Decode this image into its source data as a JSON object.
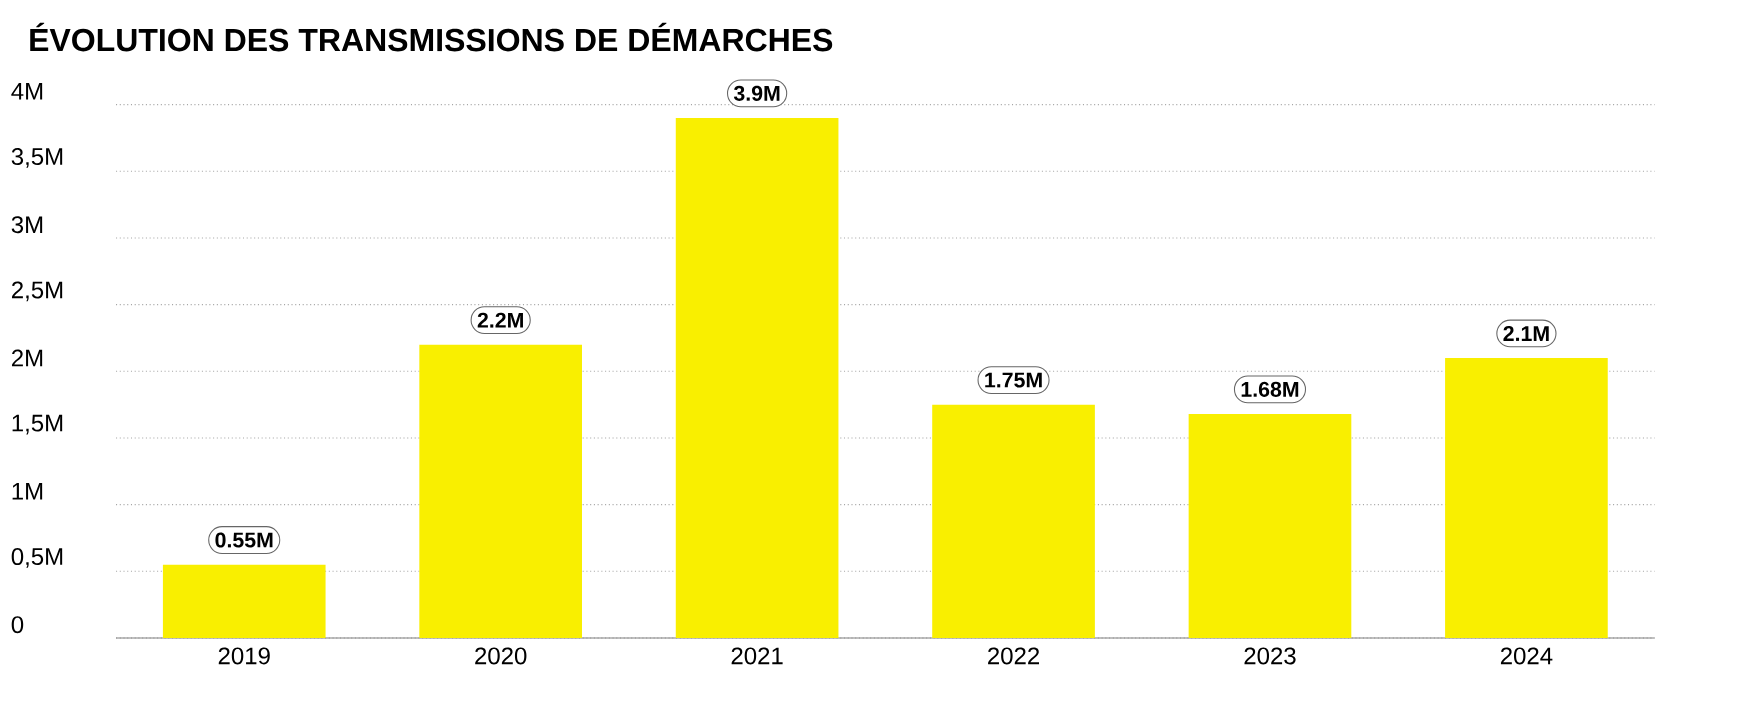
{
  "chart_data": {
    "type": "bar",
    "title": "ÉVOLUTION DES TRANSMISSIONS DE DÉMARCHES",
    "categories": [
      "2019",
      "2020",
      "2021",
      "2022",
      "2023",
      "2024"
    ],
    "values": [
      0.55,
      2.2,
      3.9,
      1.75,
      1.68,
      2.1
    ],
    "value_labels": [
      "0.55M",
      "2.2M",
      "3.9M",
      "1.75M",
      "1.68M",
      "2.1M"
    ],
    "color": "#f9ef00",
    "ylim": [
      0,
      4
    ],
    "yticks": [
      0,
      {
        "value": 0.5,
        "label": "0,5M"
      },
      {
        "value": 1,
        "label": "1M"
      },
      {
        "value": 1.5,
        "label": "1,5M"
      },
      {
        "value": 2,
        "label": "2M"
      },
      {
        "value": 2.5,
        "label": "2,5M"
      },
      {
        "value": 3,
        "label": "3M"
      },
      {
        "value": 3.5,
        "label": "3,5M"
      },
      {
        "value": 4,
        "label": "4M"
      }
    ],
    "grid": "y"
  }
}
